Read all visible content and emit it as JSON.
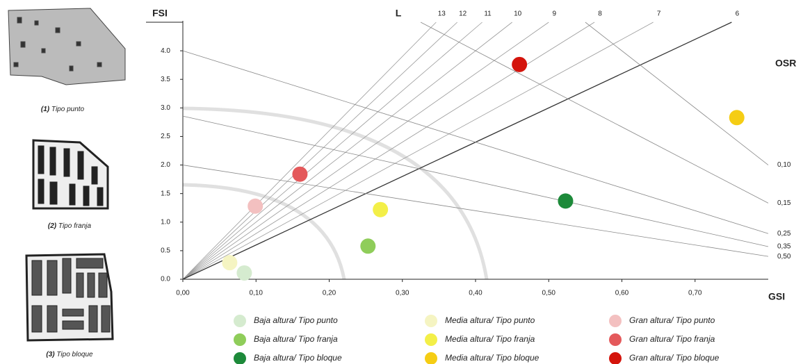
{
  "typologies": [
    {
      "number": "(1)",
      "label": "Tipo punto"
    },
    {
      "number": "(2)",
      "label": "Tipo franja"
    },
    {
      "number": "(3)",
      "label": "Tipo bloque"
    }
  ],
  "chart_data": {
    "type": "scatter",
    "x_label": "GSI",
    "y_label": "FSI",
    "l_label": "L",
    "osr_label": "OSR",
    "xlim": [
      0,
      0.8
    ],
    "ylim": [
      0,
      4.5
    ],
    "xticks": [
      {
        "value": 0,
        "label": "0,00"
      },
      {
        "value": 0.1,
        "label": "0,10"
      },
      {
        "value": 0.2,
        "label": "0,20"
      },
      {
        "value": 0.3,
        "label": "0,30"
      },
      {
        "value": 0.4,
        "label": "0,40"
      },
      {
        "value": 0.5,
        "label": "0,50"
      },
      {
        "value": 0.6,
        "label": "0,60"
      },
      {
        "value": 0.7,
        "label": "0,70"
      }
    ],
    "yticks": [
      {
        "value": 0,
        "label": "0.0"
      },
      0.5,
      {
        "value": 1,
        "label": "1.0"
      },
      1.5,
      {
        "value": 2,
        "label": "2.0"
      },
      2.5,
      {
        "value": 3,
        "label": "3.0"
      },
      3.5,
      {
        "value": 4,
        "label": "4.0"
      }
    ],
    "l_lines": [
      13,
      12,
      11,
      10,
      9,
      8,
      7,
      6
    ],
    "osr_lines": [
      {
        "value": 0.1,
        "label": "0,10"
      },
      {
        "value": 0.15,
        "label": "0,15"
      },
      {
        "value": 0.25,
        "label": "0,25"
      },
      {
        "value": 0.35,
        "label": "0,35"
      },
      {
        "value": 0.5,
        "label": "0,50"
      }
    ],
    "series": [
      {
        "name": "Baja altura/ Tipo punto",
        "color": "#d5ebcf",
        "x": [
          0.084
        ],
        "values": [
          0.11
        ]
      },
      {
        "name": "Baja altura/ Tipo franja",
        "color": "#8fcd5a",
        "x": [
          0.253
        ],
        "values": [
          0.58
        ]
      },
      {
        "name": "Baja altura/ Tipo bloque",
        "color": "#1d8a3a",
        "x": [
          0.523
        ],
        "values": [
          1.37
        ]
      },
      {
        "name": "Media altura/ Tipo punto",
        "color": "#f5f4c2",
        "x": [
          0.064
        ],
        "values": [
          0.29
        ]
      },
      {
        "name": "Media altura/ Tipo franja",
        "color": "#f3ef48",
        "x": [
          0.27
        ],
        "values": [
          1.22
        ]
      },
      {
        "name": "Media altura/ Tipo bloque",
        "color": "#f5cd14",
        "x": [
          0.757
        ],
        "values": [
          2.83
        ]
      },
      {
        "name": "Gran altura/ Tipo punto",
        "color": "#f3c0c0",
        "x": [
          0.099
        ],
        "values": [
          1.28
        ]
      },
      {
        "name": "Gran altura/ Tipo franja",
        "color": "#e4595b",
        "x": [
          0.16
        ],
        "values": [
          1.84
        ]
      },
      {
        "name": "Gran altura/ Tipo bloque",
        "color": "#d4140c",
        "x": [
          0.46
        ],
        "values": [
          3.76
        ]
      }
    ]
  }
}
